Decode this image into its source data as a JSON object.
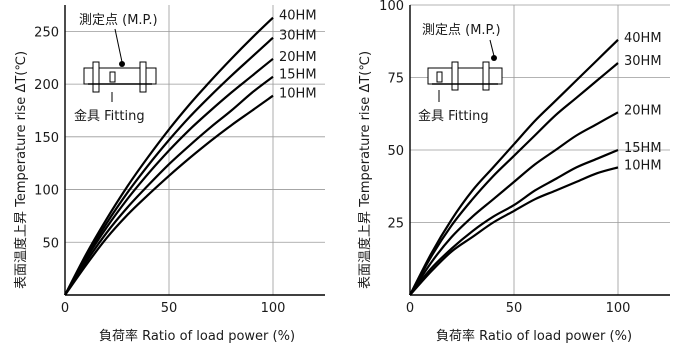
{
  "chart_data": [
    {
      "type": "line",
      "xlabel": "負荷率  Ratio of load power  (%)",
      "ylabel": "表面温度上昇  Temperature rise  ΔT(℃)",
      "xlim": [
        0,
        125
      ],
      "ylim": [
        0,
        275
      ],
      "x_ticks": [
        "0",
        "50",
        "100"
      ],
      "y_ticks": [
        "50",
        "100",
        "150",
        "200",
        "250"
      ],
      "grid": true,
      "x": [
        0,
        10,
        20,
        30,
        40,
        50,
        60,
        70,
        80,
        90,
        100
      ],
      "series": [
        {
          "name": "40HM",
          "values": [
            0,
            38,
            72,
            103,
            131,
            157,
            181,
            203,
            224,
            244,
            263
          ]
        },
        {
          "name": "30HM",
          "values": [
            0,
            36,
            68,
            97,
            123,
            147,
            169,
            189,
            208,
            226,
            244
          ]
        },
        {
          "name": "20HM",
          "values": [
            0,
            34,
            64,
            91,
            115,
            137,
            157,
            175,
            192,
            208,
            224
          ]
        },
        {
          "name": "15HM",
          "values": [
            0,
            31,
            59,
            83,
            104,
            124,
            142,
            159,
            175,
            192,
            207
          ]
        },
        {
          "name": "10HM",
          "values": [
            0,
            28,
            54,
            76,
            95,
            113,
            130,
            146,
            161,
            175,
            189
          ]
        }
      ],
      "inset": {
        "mp_label": "測定点 (M.P.)",
        "fitting_label": "金具 Fitting"
      }
    },
    {
      "type": "line",
      "xlabel": "負荷率  Ratio of load power  (%)",
      "ylabel": "表面温度上昇  Temperature rise  ΔT(℃)",
      "xlim": [
        0,
        125
      ],
      "ylim": [
        0,
        100
      ],
      "x_ticks": [
        "0",
        "50",
        "100"
      ],
      "y_ticks": [
        "25",
        "50",
        "75",
        "100"
      ],
      "grid": true,
      "x": [
        0,
        10,
        20,
        30,
        40,
        50,
        60,
        70,
        80,
        90,
        100
      ],
      "series": [
        {
          "name": "40HM",
          "values": [
            0,
            14,
            26,
            36,
            44,
            52,
            60,
            67,
            74,
            81,
            88
          ]
        },
        {
          "name": "30HM",
          "values": [
            0,
            13,
            24,
            33,
            41,
            48,
            55,
            62,
            68,
            74,
            80
          ]
        },
        {
          "name": "20HM",
          "values": [
            0,
            11,
            20,
            27,
            33,
            39,
            45,
            50,
            55,
            59,
            63
          ]
        },
        {
          "name": "15HM",
          "values": [
            0,
            9,
            16,
            22,
            27,
            31,
            36,
            40,
            44,
            47,
            50
          ]
        },
        {
          "name": "10HM",
          "values": [
            0,
            8,
            15,
            20,
            25,
            29,
            33,
            36,
            39,
            42,
            44
          ]
        }
      ],
      "inset": {
        "mp_label": "測定点 (M.P.)",
        "fitting_label": "金具 Fitting"
      }
    }
  ]
}
